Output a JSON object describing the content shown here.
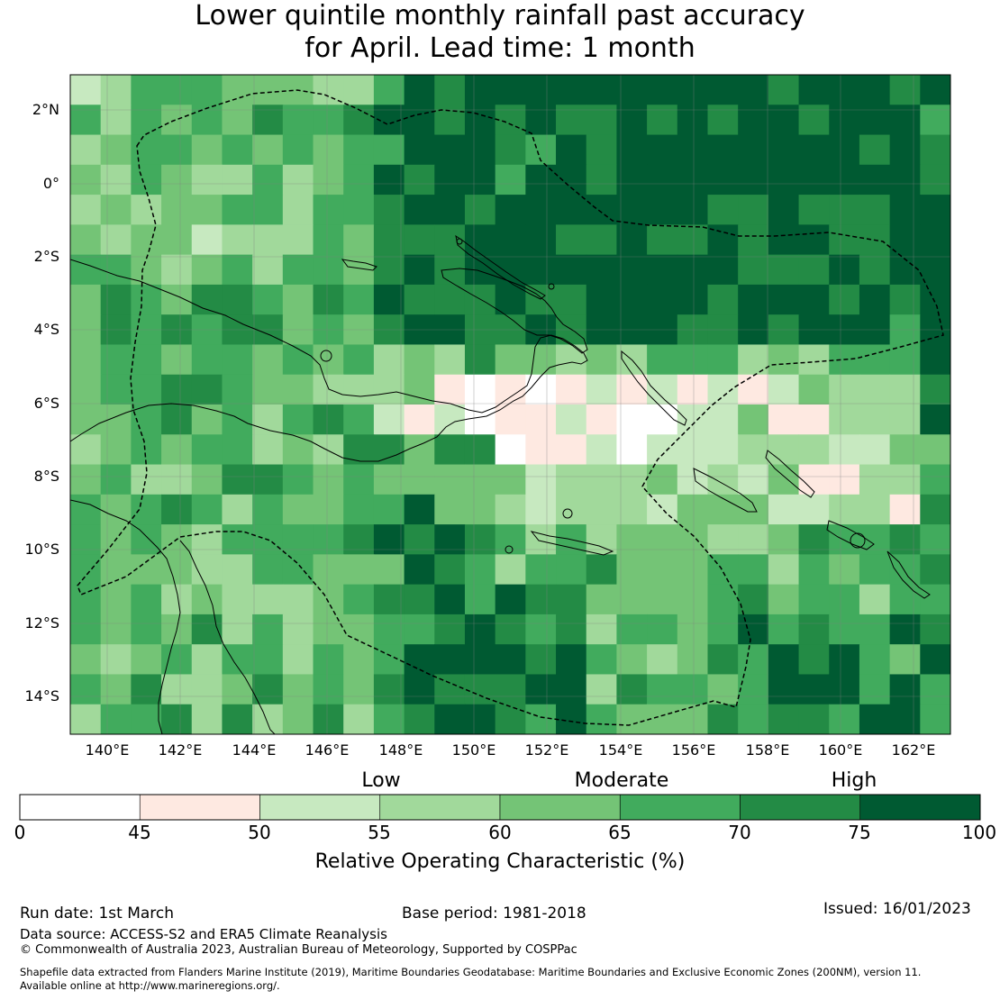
{
  "title": {
    "line1": "Lower quintile monthly rainfall past accuracy",
    "line2": "for April. Lead time: 1 month"
  },
  "map": {
    "lat_labels": [
      "2°N",
      "0°",
      "2°S",
      "4°S",
      "6°S",
      "8°S",
      "10°S",
      "12°S",
      "14°S"
    ],
    "lon_labels": [
      "140°E",
      "142°E",
      "144°E",
      "146°E",
      "148°E",
      "150°E",
      "152°E",
      "154°E",
      "156°E",
      "158°E",
      "160°E",
      "162°E"
    ],
    "extent_deg": {
      "lon_min": 139,
      "lon_max": 163,
      "lat_min": -15,
      "lat_max": 3
    },
    "grid_resolution_deg": 0.8333
  },
  "legend": {
    "categories": [
      "Low",
      "Moderate",
      "High"
    ],
    "ticks": [
      "0",
      "45",
      "50",
      "55",
      "60",
      "65",
      "70",
      "75",
      "100"
    ],
    "bins": [
      {
        "from": 0,
        "to": 45,
        "color": "#ffffff"
      },
      {
        "from": 45,
        "to": 50,
        "color": "#fee9e1"
      },
      {
        "from": 50,
        "to": 55,
        "color": "#c7e9c0"
      },
      {
        "from": 55,
        "to": 60,
        "color": "#a1d99b"
      },
      {
        "from": 60,
        "to": 65,
        "color": "#74c476"
      },
      {
        "from": 65,
        "to": 70,
        "color": "#41ab5d"
      },
      {
        "from": 70,
        "to": 75,
        "color": "#238b45"
      },
      {
        "from": 75,
        "to": 100,
        "color": "#005a32"
      }
    ],
    "title": "Relative Operating Characteristic (%)"
  },
  "footer": {
    "run_date": "Run date: 1st March",
    "base_period": "Base period: 1981-2018",
    "issued": "Issued: 16/01/2023",
    "data_source": "Data source: ACCESS-S2 and ERA5 Climate Reanalysis",
    "copyright": "© Commonwealth of Australia 2023, Australian Bureau of Meteorology, Supported by COSPPac",
    "shapefile_line1": "Shapefile data extracted from Flanders Marine Institute (2019), Maritime Boundaries Geodatabase: Maritime Boundaries and Exclusive Economic Zones (200NM), version 11.",
    "shapefile_line2": "Available online at http://www.marineregions.org/."
  }
}
